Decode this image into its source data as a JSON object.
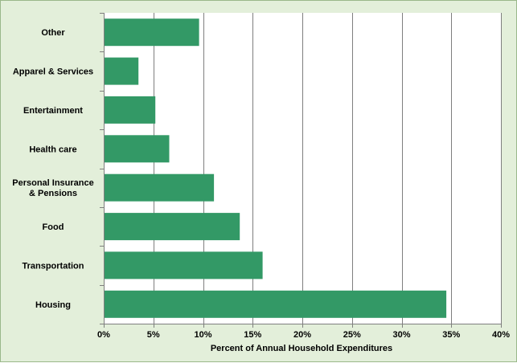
{
  "chart_data": {
    "type": "bar",
    "orientation": "horizontal",
    "categories": [
      "Housing",
      "Transportation",
      "Food",
      "Personal Insurance & Pensions",
      "Health care",
      "Entertainment",
      "Apparel & Services",
      "Other"
    ],
    "category_label_lines": [
      [
        "Housing"
      ],
      [
        "Transportation"
      ],
      [
        "Food"
      ],
      [
        "Personal Insurance",
        "& Pensions"
      ],
      [
        "Health care"
      ],
      [
        "Entertainment"
      ],
      [
        "Apparel & Services"
      ],
      [
        "Other"
      ]
    ],
    "values": [
      34.5,
      16.0,
      13.7,
      11.1,
      6.6,
      5.2,
      3.5,
      9.6
    ],
    "xlabel": "Percent of Annual Household Expenditures",
    "ylabel": "",
    "xlim": [
      0,
      40
    ],
    "x_ticks": [
      0,
      5,
      10,
      15,
      20,
      25,
      30,
      35,
      40
    ],
    "x_tick_labels": [
      "0%",
      "5%",
      "10%",
      "15%",
      "20%",
      "25%",
      "30%",
      "35%",
      "40%"
    ],
    "grid": "vertical",
    "legend": "none",
    "colors": {
      "bar": "#339966",
      "background": "#e3efda",
      "plot_area": "#ffffff",
      "gridline": "#7f7f7f"
    }
  }
}
